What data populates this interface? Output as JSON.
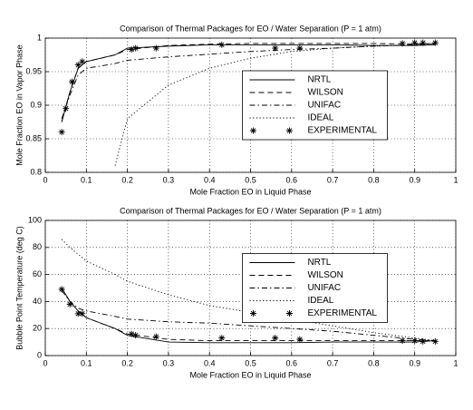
{
  "chart_data": [
    {
      "type": "line",
      "title": "Comparison of Thermal Packages for EO / Water Separation (P = 1 atm)",
      "xlabel": "Mole Fraction EO in Liquid Phase",
      "ylabel": "Mole Fraction EO in Vapor Phase",
      "xlim": [
        0,
        1
      ],
      "ylim": [
        0.8,
        1
      ],
      "xticks": [
        0,
        0.1,
        0.2,
        0.3,
        0.4,
        0.5,
        0.6,
        0.7,
        0.8,
        0.9,
        1
      ],
      "yticks": [
        0.8,
        0.85,
        0.9,
        0.95,
        1
      ],
      "grid": true,
      "legend": "center right",
      "series": [
        {
          "name": "NRTL",
          "color": "#000000",
          "style": "solid",
          "x": [
            0.04,
            0.06,
            0.08,
            0.1,
            0.17,
            0.2,
            0.3,
            0.4,
            0.5,
            0.6,
            0.7,
            0.8,
            0.9,
            0.95
          ],
          "values": [
            0.875,
            0.92,
            0.955,
            0.965,
            0.975,
            0.985,
            0.988,
            0.99,
            0.99,
            0.99,
            0.99,
            0.989,
            0.989,
            0.99
          ]
        },
        {
          "name": "WILSON",
          "color": "#000000",
          "style": "dashed",
          "x": [
            0.04,
            0.06,
            0.08,
            0.1,
            0.17,
            0.2,
            0.3,
            0.4,
            0.5,
            0.6,
            0.7,
            0.8,
            0.9,
            0.95
          ],
          "values": [
            0.875,
            0.92,
            0.955,
            0.965,
            0.975,
            0.983,
            0.989,
            0.991,
            0.992,
            0.992,
            0.992,
            0.992,
            0.991,
            0.992
          ]
        },
        {
          "name": "UNIFAC",
          "color": "#000000",
          "style": "dashdot",
          "x": [
            0.04,
            0.06,
            0.08,
            0.1,
            0.17,
            0.2,
            0.3,
            0.4,
            0.5,
            0.6,
            0.7,
            0.8,
            0.9,
            0.95
          ],
          "values": [
            0.88,
            0.915,
            0.945,
            0.955,
            0.962,
            0.967,
            0.972,
            0.976,
            0.98,
            0.983,
            0.985,
            0.988,
            0.99,
            0.992
          ]
        },
        {
          "name": "IDEAL",
          "color": "#000000",
          "style": "dotted",
          "x": [
            0.04,
            0.06,
            0.08,
            0.1,
            0.17,
            0.2,
            0.3,
            0.4,
            0.5,
            0.6,
            0.7,
            0.8,
            0.9,
            0.95
          ],
          "values": [
            null,
            null,
            null,
            null,
            0.81,
            0.88,
            0.93,
            0.955,
            0.97,
            0.98,
            0.985,
            0.988,
            0.99,
            0.992
          ]
        },
        {
          "name": "EXPERIMENTAL",
          "color": "#000000",
          "style": "marker",
          "x": [
            0.04,
            0.05,
            0.065,
            0.08,
            0.09,
            0.21,
            0.22,
            0.27,
            0.43,
            0.56,
            0.62,
            0.87,
            0.9,
            0.92,
            0.95
          ],
          "values": [
            0.86,
            0.895,
            0.935,
            0.96,
            0.965,
            0.983,
            0.985,
            0.985,
            0.99,
            0.985,
            0.985,
            0.992,
            0.993,
            0.993,
            0.993
          ]
        }
      ]
    },
    {
      "type": "line",
      "title": "Comparison of Thermal Packages for EO / Water Separation (P = 1 atm)",
      "xlabel": "Mole Fraction EO in Liquid Phase",
      "ylabel": "Bubble Point Temperature (deg C)",
      "xlim": [
        0,
        1
      ],
      "ylim": [
        0,
        100
      ],
      "xticks": [
        0,
        0.1,
        0.2,
        0.3,
        0.4,
        0.5,
        0.6,
        0.7,
        0.8,
        0.9,
        1
      ],
      "yticks": [
        0,
        20,
        40,
        60,
        80,
        100
      ],
      "grid": true,
      "legend": "center right",
      "series": [
        {
          "name": "NRTL",
          "color": "#000000",
          "style": "solid",
          "x": [
            0.04,
            0.06,
            0.08,
            0.1,
            0.17,
            0.2,
            0.3,
            0.4,
            0.5,
            0.6,
            0.7,
            0.8,
            0.9,
            0.95
          ],
          "values": [
            50,
            40,
            33,
            28,
            20,
            15,
            10,
            9.5,
            9.5,
            9.5,
            10,
            10,
            10,
            11
          ]
        },
        {
          "name": "WILSON",
          "color": "#000000",
          "style": "dashed",
          "x": [
            0.04,
            0.06,
            0.08,
            0.1,
            0.17,
            0.2,
            0.3,
            0.4,
            0.5,
            0.6,
            0.7,
            0.8,
            0.9,
            0.95
          ],
          "values": [
            50,
            40,
            33,
            28,
            20,
            16,
            12,
            11,
            11,
            11,
            11,
            11,
            11,
            11
          ]
        },
        {
          "name": "UNIFAC",
          "color": "#000000",
          "style": "dashdot",
          "x": [
            0.04,
            0.06,
            0.08,
            0.1,
            0.17,
            0.2,
            0.3,
            0.4,
            0.5,
            0.6,
            0.7,
            0.8,
            0.9,
            0.95
          ],
          "values": [
            48,
            40,
            35,
            33,
            29,
            27,
            25,
            24,
            22,
            20,
            18,
            15,
            12,
            11
          ]
        },
        {
          "name": "IDEAL",
          "color": "#000000",
          "style": "dotted",
          "x": [
            0.04,
            0.06,
            0.08,
            0.1,
            0.17,
            0.2,
            0.3,
            0.4,
            0.5,
            0.6,
            0.7,
            0.8,
            0.9,
            0.95
          ],
          "values": [
            86,
            80,
            75,
            70,
            60,
            55,
            45,
            37,
            32,
            27,
            22,
            17,
            13,
            11
          ]
        },
        {
          "name": "EXPERIMENTAL",
          "color": "#000000",
          "style": "marker",
          "x": [
            0.04,
            0.06,
            0.08,
            0.09,
            0.21,
            0.22,
            0.27,
            0.43,
            0.56,
            0.62,
            0.87,
            0.9,
            0.92,
            0.95
          ],
          "values": [
            49,
            38,
            31,
            31,
            16,
            15,
            14,
            13,
            13,
            12,
            11,
            11,
            10.5,
            10.5
          ]
        }
      ]
    }
  ]
}
